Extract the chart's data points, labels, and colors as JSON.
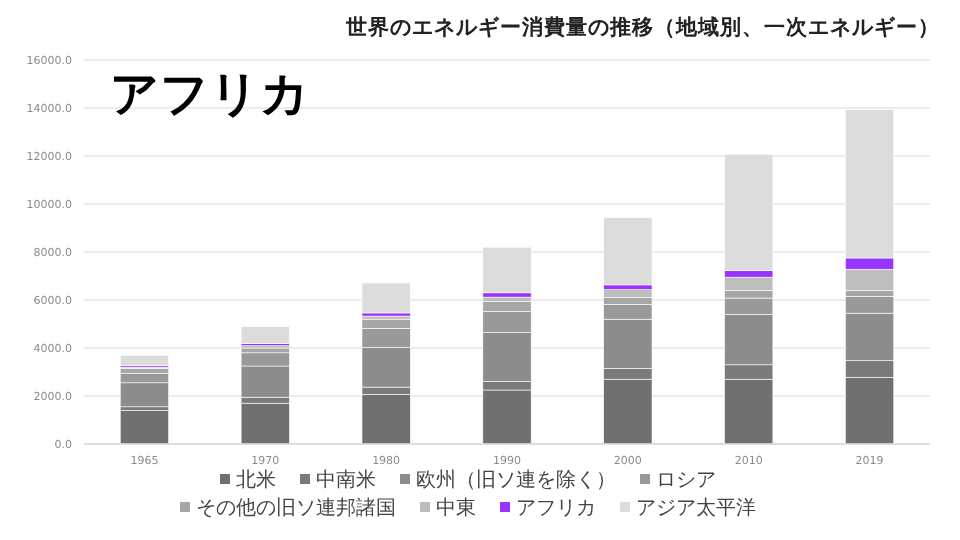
{
  "chart_data": {
    "type": "bar",
    "title": "世界のエネルギー消費量の推移（地域別、一次エネルギー）",
    "subtitle": "アフリカ",
    "stacked": true,
    "categories": [
      "1965",
      "1970",
      "1980",
      "1990",
      "2000",
      "2010",
      "2019"
    ],
    "series": [
      {
        "name": "北米",
        "color": "#707070",
        "values": [
          1400,
          1700,
          2070,
          2250,
          2700,
          2700,
          2780
        ]
      },
      {
        "name": "中南米",
        "color": "#7a7a7a",
        "values": [
          150,
          250,
          300,
          350,
          450,
          600,
          690
        ]
      },
      {
        "name": "欧州（旧ソ連を除く）",
        "color": "#8c8c8c",
        "values": [
          1000,
          1300,
          1650,
          2050,
          2050,
          2100,
          1980
        ]
      },
      {
        "name": "ロシア",
        "color": "#999999",
        "values": [
          400,
          550,
          800,
          870,
          620,
          680,
          700
        ]
      },
      {
        "name": "その他の旧ソ連邦諸国",
        "color": "#a6a6a6",
        "values": [
          200,
          200,
          380,
          420,
          280,
          320,
          250
        ]
      },
      {
        "name": "中東",
        "color": "#bdbdbd",
        "values": [
          50,
          100,
          130,
          180,
          330,
          550,
          880
        ]
      },
      {
        "name": "アフリカ",
        "color": "#9933ff",
        "values": [
          60,
          90,
          130,
          180,
          200,
          270,
          470
        ]
      },
      {
        "name": "アジア太平洋",
        "color": "#dcdcdc",
        "values": [
          440,
          710,
          1250,
          1900,
          2800,
          4850,
          6180
        ]
      }
    ],
    "ylim": [
      0,
      16000
    ],
    "yticks": [
      {
        "value": 0,
        "label": "0.0"
      },
      {
        "value": 2000,
        "label": "2000.0"
      },
      {
        "value": 4000,
        "label": "4000.0"
      },
      {
        "value": 6000,
        "label": "6000.0"
      },
      {
        "value": 8000,
        "label": "8000.0"
      },
      {
        "value": 10000,
        "label": "10000.0"
      },
      {
        "value": 12000,
        "label": "12000.0"
      },
      {
        "value": 14000,
        "label": "14000.0"
      },
      {
        "value": 16000,
        "label": "16000.0"
      }
    ],
    "grid": "y",
    "legend": "bottom"
  }
}
